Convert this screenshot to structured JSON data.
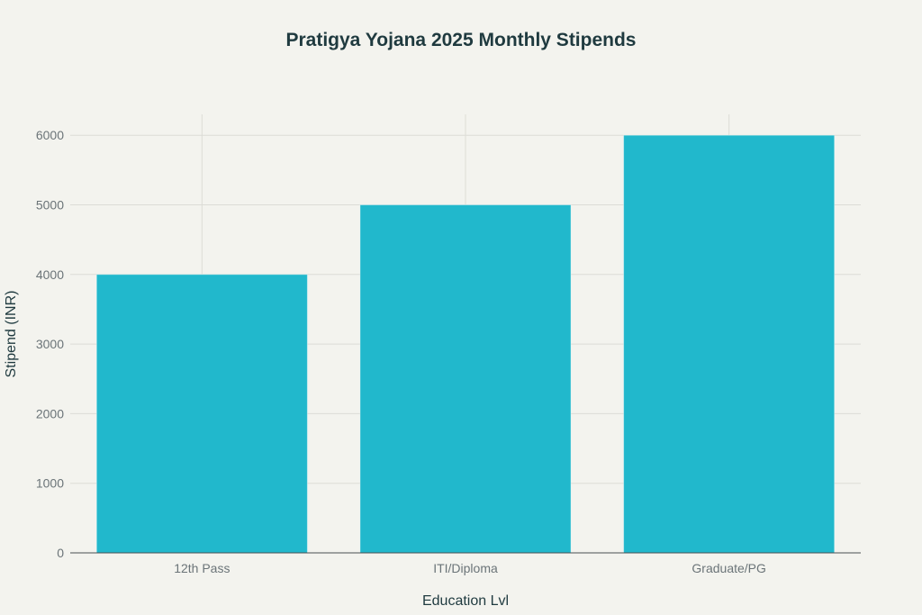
{
  "chart_data": {
    "type": "bar",
    "title": "Pratigya Yojana 2025 Monthly Stipends",
    "xlabel": "Education Lvl",
    "ylabel": "Stipend (INR)",
    "categories": [
      "12th Pass",
      "ITI/Diploma",
      "Graduate/PG"
    ],
    "values": [
      4000,
      5000,
      6000
    ],
    "ylim": [
      0,
      6300
    ],
    "yticks": [
      0,
      1000,
      2000,
      3000,
      4000,
      5000,
      6000
    ],
    "grid": true,
    "legend": "none",
    "colors": {
      "bar": "#21b8cc",
      "background": "#f3f3ee",
      "grid": "#dcdcd6",
      "axis": "#4a4f52"
    }
  }
}
